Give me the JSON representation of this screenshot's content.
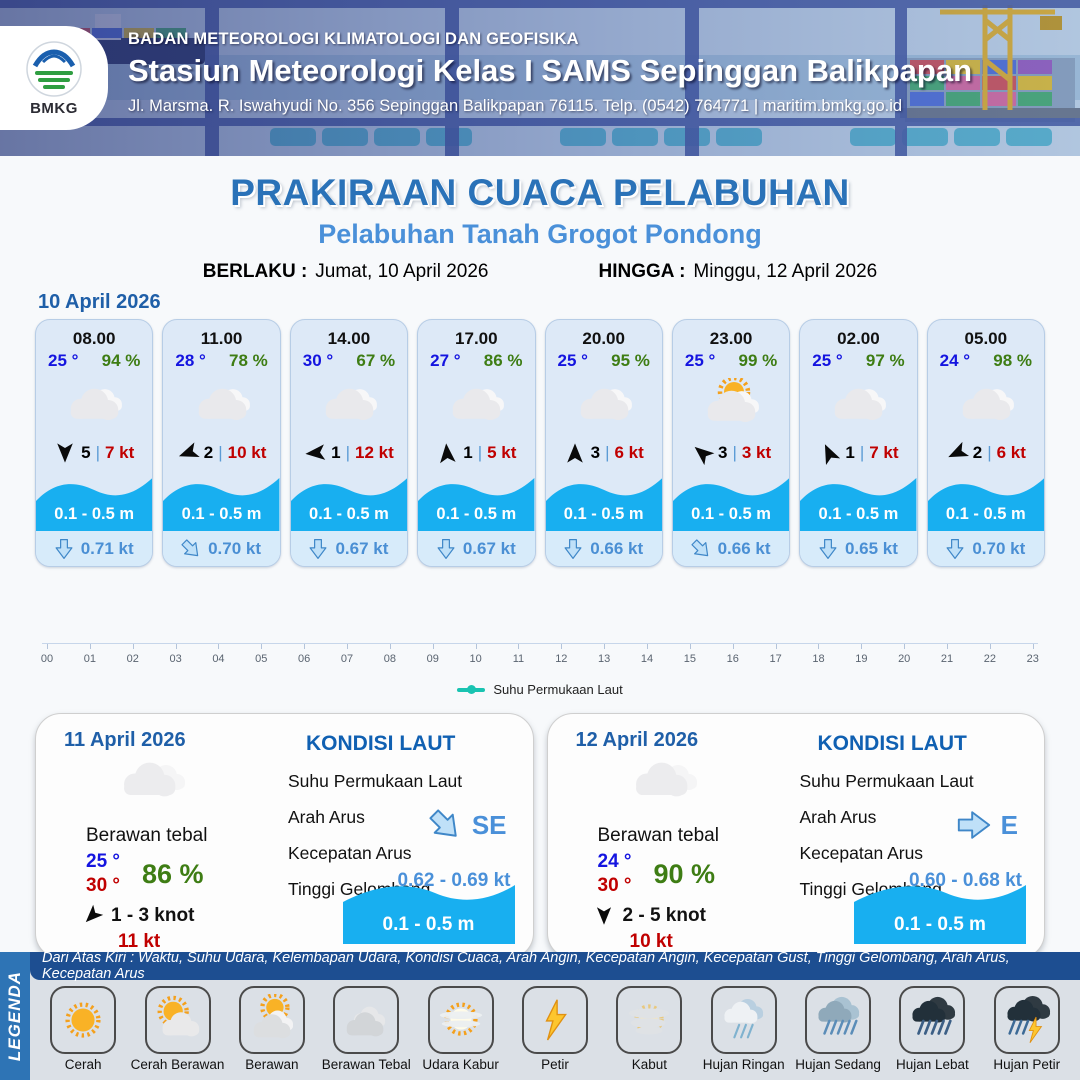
{
  "header": {
    "logo_label": "BMKG",
    "agency": "BADAN METEOROLOGI KLIMATOLOGI DAN GEOFISIKA",
    "station": "Stasiun Meteorologi Kelas I SAMS Sepinggan Balikpapan",
    "address": "Jl. Marsma. R. Iswahyudi No. 356 Sepinggan Balikpapan 76115. Telp. (0542) 764771 | maritim.bmkg.go.id"
  },
  "title": {
    "main": "PRAKIRAAN CUACA PELABUHAN",
    "subtitle": "Pelabuhan Tanah Grogot Pondong",
    "berlaku_label": "BERLAKU :",
    "berlaku_value": "Jumat, 10 April 2026",
    "hingga_label": "HINGGA :",
    "hingga_value": "Minggu, 12 April 2026"
  },
  "forecast_day": {
    "date": "10 April 2026",
    "cards": [
      {
        "time": "08.00",
        "temp": "25 °",
        "humidity": "94 %",
        "weather": "berawan-tebal",
        "wind_deg": 180,
        "wind_scale": "5",
        "wind_speed": "7 kt",
        "wave": "0.1 - 0.5 m",
        "current_deg": 180,
        "current_speed": "0.71 kt"
      },
      {
        "time": "11.00",
        "temp": "28 °",
        "humidity": "78 %",
        "weather": "berawan-tebal",
        "wind_deg": 250,
        "wind_scale": "2",
        "wind_speed": "10 kt",
        "wave": "0.1 - 0.5 m",
        "current_deg": 135,
        "current_speed": "0.70 kt"
      },
      {
        "time": "14.00",
        "temp": "30 °",
        "humidity": "67 %",
        "weather": "berawan-tebal",
        "wind_deg": 265,
        "wind_scale": "1",
        "wind_speed": "12 kt",
        "wave": "0.1 - 0.5 m",
        "current_deg": 180,
        "current_speed": "0.67 kt"
      },
      {
        "time": "17.00",
        "temp": "27 °",
        "humidity": "86 %",
        "weather": "berawan-tebal",
        "wind_deg": 355,
        "wind_scale": "1",
        "wind_speed": "5 kt",
        "wave": "0.1 - 0.5 m",
        "current_deg": 180,
        "current_speed": "0.67 kt"
      },
      {
        "time": "20.00",
        "temp": "25 °",
        "humidity": "95 %",
        "weather": "berawan-tebal",
        "wind_deg": 0,
        "wind_scale": "3",
        "wind_speed": "6 kt",
        "wave": "0.1 - 0.5 m",
        "current_deg": 180,
        "current_speed": "0.66 kt"
      },
      {
        "time": "23.00",
        "temp": "25 °",
        "humidity": "99 %",
        "weather": "berawan",
        "wind_deg": 310,
        "wind_scale": "3",
        "wind_speed": "3 kt",
        "wave": "0.1 - 0.5 m",
        "current_deg": 135,
        "current_speed": "0.66 kt"
      },
      {
        "time": "02.00",
        "temp": "25 °",
        "humidity": "97 %",
        "weather": "berawan-tebal",
        "wind_deg": 335,
        "wind_scale": "1",
        "wind_speed": "7 kt",
        "wave": "0.1 - 0.5 m",
        "current_deg": 180,
        "current_speed": "0.65 kt"
      },
      {
        "time": "05.00",
        "temp": "24 °",
        "humidity": "98 %",
        "weather": "berawan-tebal",
        "wind_deg": 245,
        "wind_scale": "2",
        "wind_speed": "6 kt",
        "wave": "0.1 - 0.5 m",
        "current_deg": 180,
        "current_speed": "0.70 kt"
      }
    ]
  },
  "timeline": {
    "hours": [
      "00",
      "01",
      "02",
      "03",
      "04",
      "05",
      "06",
      "07",
      "08",
      "09",
      "10",
      "11",
      "12",
      "13",
      "14",
      "15",
      "16",
      "17",
      "18",
      "19",
      "20",
      "21",
      "22",
      "23"
    ],
    "legend": "Suhu Permukaan Laut",
    "legend_color": "#19c3b1"
  },
  "day_panels": [
    {
      "date": "11 April 2026",
      "weather_label": "Berawan tebal",
      "temp_min": "25 °",
      "temp_max": "30 °",
      "humidity": "86 %",
      "wind_deg": 225,
      "wind_range": "1  - 3 knot",
      "gust": "11 kt",
      "sea_heading": "KONDISI LAUT",
      "sst_label": "Suhu Permukaan Laut",
      "arah_label": "Arah Arus",
      "arah_value": "SE",
      "arah_deg": 135,
      "kecepatan_label": "Kecepatan Arus",
      "kecepatan_value": "0.62  - 0.69 kt",
      "gelombang_label": "Tinggi Gelombang",
      "gelombang_value": "0.1 - 0.5 m"
    },
    {
      "date": "12 April 2026",
      "weather_label": "Berawan tebal",
      "temp_min": "24 °",
      "temp_max": "30 °",
      "humidity": "90 %",
      "wind_deg": 180,
      "wind_range": "2  - 5 knot",
      "gust": "10 kt",
      "sea_heading": "KONDISI LAUT",
      "sst_label": "Suhu Permukaan Laut",
      "arah_label": "Arah Arus",
      "arah_value": "E",
      "arah_deg": 90,
      "kecepatan_label": "Kecepatan Arus",
      "kecepatan_value": "0.60  - 0.68 kt",
      "gelombang_label": "Tinggi Gelombang",
      "gelombang_value": "0.1 - 0.5 m"
    }
  ],
  "legend": {
    "title": "LEGENDA",
    "description": "Dari Atas Kiri : Waktu, Suhu Udara, Kelembapan Udara, Kondisi Cuaca, Arah Angin, Kecepatan Angin, Kecepatan Gust, Tinggi Gelombang, Arah Arus, Kecepatan Arus",
    "items": [
      {
        "label": "Cerah",
        "icon": "cerah"
      },
      {
        "label": "Cerah Berawan",
        "icon": "cerah-berawan"
      },
      {
        "label": "Berawan",
        "icon": "berawan"
      },
      {
        "label": "Berawan Tebal",
        "icon": "berawan-tebal"
      },
      {
        "label": "Udara Kabur",
        "icon": "udara-kabur"
      },
      {
        "label": "Petir",
        "icon": "petir"
      },
      {
        "label": "Kabut",
        "icon": "kabut"
      },
      {
        "label": "Hujan Ringan",
        "icon": "hujan-ringan"
      },
      {
        "label": "Hujan Sedang",
        "icon": "hujan-sedang"
      },
      {
        "label": "Hujan Lebat",
        "icon": "hujan-lebat"
      },
      {
        "label": "Hujan Petir",
        "icon": "hujan-petir"
      }
    ]
  },
  "colors": {
    "title_blue": "#2a72b8",
    "subtitle_blue": "#4a90d9",
    "temp_blue": "#1414e0",
    "humidity_green": "#3e7d14",
    "speed_red": "#c00000",
    "wave_blue": "#18aff0",
    "current_blue": "#4a8fd4",
    "sea_heading_blue": "#1060b2"
  }
}
